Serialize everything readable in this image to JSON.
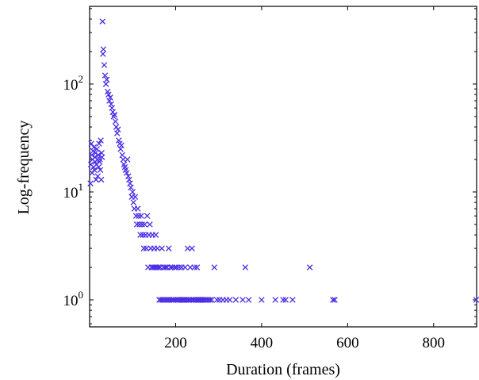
{
  "chart_data": {
    "type": "scatter",
    "title": "",
    "xlabel": "Duration (frames)",
    "ylabel": "Log-frequency",
    "xlim": [
      0,
      900
    ],
    "ylim_log10": [
      -0.25,
      2.72
    ],
    "yscale": "log",
    "grid": false,
    "legend": "none",
    "marker": "cross",
    "color": "#4a2ee6",
    "x_ticks": [
      {
        "value": 200,
        "label": "200"
      },
      {
        "value": 400,
        "label": "400"
      },
      {
        "value": 600,
        "label": "600"
      },
      {
        "value": 800,
        "label": "800"
      }
    ],
    "y_ticks": [
      {
        "exp": 0,
        "base": "10",
        "sup": "0"
      },
      {
        "exp": 1,
        "base": "10",
        "sup": "1"
      },
      {
        "exp": 2,
        "base": "10",
        "sup": "2"
      }
    ],
    "points": [
      [
        2,
        12
      ],
      [
        3,
        18
      ],
      [
        4,
        28
      ],
      [
        5,
        22
      ],
      [
        6,
        15
      ],
      [
        7,
        20
      ],
      [
        8,
        24
      ],
      [
        9,
        17
      ],
      [
        10,
        26
      ],
      [
        11,
        16
      ],
      [
        12,
        21
      ],
      [
        13,
        19
      ],
      [
        14,
        23
      ],
      [
        15,
        13
      ],
      [
        16,
        18
      ],
      [
        17,
        25
      ],
      [
        18,
        20
      ],
      [
        19,
        14
      ],
      [
        20,
        22
      ],
      [
        21,
        17
      ],
      [
        22,
        28
      ],
      [
        23,
        19
      ],
      [
        24,
        20
      ],
      [
        25,
        16
      ],
      [
        26,
        30
      ],
      [
        27,
        13
      ],
      [
        28,
        23
      ],
      [
        29,
        21
      ],
      [
        30,
        380
      ],
      [
        31,
        190
      ],
      [
        32,
        210
      ],
      [
        34,
        150
      ],
      [
        36,
        120
      ],
      [
        38,
        100
      ],
      [
        40,
        110
      ],
      [
        42,
        85
      ],
      [
        44,
        80
      ],
      [
        46,
        70
      ],
      [
        48,
        75
      ],
      [
        50,
        65
      ],
      [
        52,
        60
      ],
      [
        54,
        55
      ],
      [
        56,
        50
      ],
      [
        58,
        52
      ],
      [
        60,
        45
      ],
      [
        62,
        40
      ],
      [
        64,
        35
      ],
      [
        66,
        38
      ],
      [
        68,
        30
      ],
      [
        70,
        28
      ],
      [
        72,
        25
      ],
      [
        74,
        27
      ],
      [
        76,
        22
      ],
      [
        78,
        20
      ],
      [
        80,
        18
      ],
      [
        82,
        17
      ],
      [
        84,
        16
      ],
      [
        86,
        15
      ],
      [
        88,
        20
      ],
      [
        90,
        14
      ],
      [
        92,
        13
      ],
      [
        94,
        12
      ],
      [
        96,
        11
      ],
      [
        98,
        9
      ],
      [
        100,
        10
      ],
      [
        102,
        8
      ],
      [
        104,
        7
      ],
      [
        106,
        9
      ],
      [
        108,
        6
      ],
      [
        110,
        5
      ],
      [
        112,
        7
      ],
      [
        114,
        6
      ],
      [
        116,
        5
      ],
      [
        118,
        4
      ],
      [
        120,
        6
      ],
      [
        122,
        5
      ],
      [
        124,
        4
      ],
      [
        126,
        3
      ],
      [
        128,
        5
      ],
      [
        130,
        4
      ],
      [
        132,
        3
      ],
      [
        134,
        6
      ],
      [
        136,
        2
      ],
      [
        138,
        4
      ],
      [
        140,
        5
      ],
      [
        142,
        3
      ],
      [
        144,
        2
      ],
      [
        146,
        4
      ],
      [
        148,
        2
      ],
      [
        150,
        3
      ],
      [
        152,
        2
      ],
      [
        154,
        4
      ],
      [
        156,
        2
      ],
      [
        158,
        3
      ],
      [
        160,
        2
      ],
      [
        162,
        1
      ],
      [
        164,
        2
      ],
      [
        166,
        1
      ],
      [
        168,
        3
      ],
      [
        170,
        1
      ],
      [
        172,
        2
      ],
      [
        174,
        1
      ],
      [
        176,
        2
      ],
      [
        178,
        1
      ],
      [
        180,
        2
      ],
      [
        182,
        1
      ],
      [
        184,
        3
      ],
      [
        186,
        1
      ],
      [
        188,
        2
      ],
      [
        190,
        1
      ],
      [
        192,
        2
      ],
      [
        194,
        1
      ],
      [
        196,
        1
      ],
      [
        198,
        2
      ],
      [
        200,
        1
      ],
      [
        202,
        2
      ],
      [
        204,
        1
      ],
      [
        206,
        1
      ],
      [
        208,
        2
      ],
      [
        210,
        1
      ],
      [
        212,
        1
      ],
      [
        214,
        2
      ],
      [
        216,
        1
      ],
      [
        218,
        1
      ],
      [
        220,
        1
      ],
      [
        222,
        2
      ],
      [
        224,
        1
      ],
      [
        226,
        1
      ],
      [
        228,
        3
      ],
      [
        230,
        1
      ],
      [
        232,
        1
      ],
      [
        234,
        2
      ],
      [
        236,
        1
      ],
      [
        238,
        3
      ],
      [
        240,
        1
      ],
      [
        242,
        1
      ],
      [
        244,
        2
      ],
      [
        246,
        1
      ],
      [
        248,
        1
      ],
      [
        250,
        2
      ],
      [
        252,
        1
      ],
      [
        254,
        1
      ],
      [
        256,
        1
      ],
      [
        258,
        1
      ],
      [
        260,
        1
      ],
      [
        262,
        1
      ],
      [
        264,
        1
      ],
      [
        268,
        1
      ],
      [
        272,
        1
      ],
      [
        276,
        1
      ],
      [
        280,
        1
      ],
      [
        284,
        1
      ],
      [
        290,
        2
      ],
      [
        296,
        1
      ],
      [
        302,
        1
      ],
      [
        310,
        1
      ],
      [
        318,
        1
      ],
      [
        326,
        1
      ],
      [
        340,
        1
      ],
      [
        356,
        1
      ],
      [
        362,
        2
      ],
      [
        370,
        1
      ],
      [
        400,
        1
      ],
      [
        432,
        1
      ],
      [
        450,
        1
      ],
      [
        456,
        1
      ],
      [
        472,
        1
      ],
      [
        512,
        2
      ],
      [
        566,
        1
      ],
      [
        570,
        1
      ],
      [
        899,
        1
      ]
    ]
  }
}
